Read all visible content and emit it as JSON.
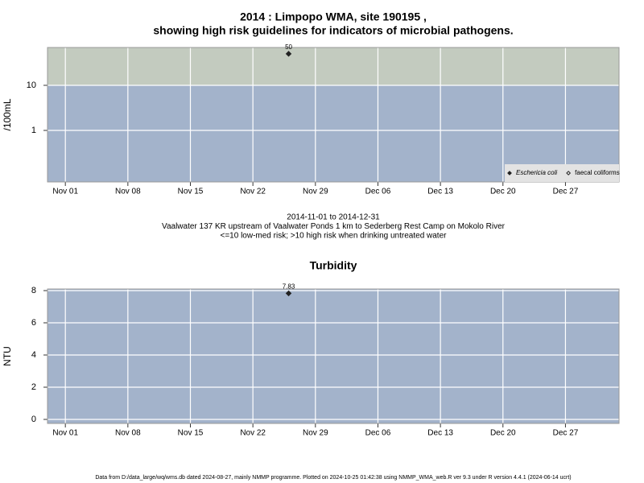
{
  "chart_data": [
    {
      "type": "scatter",
      "title": [
        "2014 : Limpopo WMA, site 190195 ,",
        "showing high risk guidelines for indicators of microbial pathogens."
      ],
      "subtitle": [
        "2014-11-01 to 2014-12-31",
        "Vaalwater 137 KR upstream of Vaalwater Ponds 1 km to Sederberg Rest Camp on Mokolo River",
        "<=10 low-med risk; >10 high risk when drinking untreated water"
      ],
      "ylabel": "/100mL",
      "log_y": true,
      "ylim": [
        0.072,
        69
      ],
      "yticks": [
        1,
        10
      ],
      "xlim": [
        "2014-10-30",
        "2015-01-02"
      ],
      "xticks": [
        {
          "value": "2014-11-01",
          "label": "Nov 01"
        },
        {
          "value": "2014-11-08",
          "label": "Nov 08"
        },
        {
          "value": "2014-11-15",
          "label": "Nov 15"
        },
        {
          "value": "2014-11-22",
          "label": "Nov 22"
        },
        {
          "value": "2014-11-29",
          "label": "Nov 29"
        },
        {
          "value": "2014-12-06",
          "label": "Dec 06"
        },
        {
          "value": "2014-12-13",
          "label": "Dec 13"
        },
        {
          "value": "2014-12-20",
          "label": "Dec 20"
        },
        {
          "value": "2014-12-27",
          "label": "Dec 27"
        }
      ],
      "grid": true,
      "guideline": 10,
      "band_colors": [
        "#a3b3cb",
        "#c3cbbf"
      ],
      "legend": "bottom-right",
      "series": [
        {
          "name": "Eschericia coli",
          "color": "#222222",
          "filled": true,
          "x": [
            "2014-11-26"
          ],
          "values": [
            50
          ]
        },
        {
          "name": "faecal coliforms",
          "color": "#222222",
          "filled": false,
          "x": [],
          "values": []
        }
      ]
    },
    {
      "type": "scatter",
      "title": [
        "Turbidity"
      ],
      "ylabel": "NTU",
      "log_y": false,
      "ylim": [
        -0.25,
        8.1
      ],
      "yticks": [
        0,
        2,
        4,
        6,
        8
      ],
      "xlim": [
        "2014-10-30",
        "2015-01-02"
      ],
      "xticks": [
        {
          "value": "2014-11-01",
          "label": "Nov 01"
        },
        {
          "value": "2014-11-08",
          "label": "Nov 08"
        },
        {
          "value": "2014-11-15",
          "label": "Nov 15"
        },
        {
          "value": "2014-11-22",
          "label": "Nov 22"
        },
        {
          "value": "2014-11-29",
          "label": "Nov 29"
        },
        {
          "value": "2014-12-06",
          "label": "Dec 06"
        },
        {
          "value": "2014-12-13",
          "label": "Dec 13"
        },
        {
          "value": "2014-12-20",
          "label": "Dec 20"
        },
        {
          "value": "2014-12-27",
          "label": "Dec 27"
        }
      ],
      "grid": true,
      "band_colors": [
        "#a3b3cb"
      ],
      "series": [
        {
          "name": "Turbidity",
          "color": "#222222",
          "filled": true,
          "x": [
            "2014-11-26"
          ],
          "values": [
            7.83
          ]
        }
      ]
    }
  ],
  "footer": "Data from D:/data_large/wq/wms.db dated 2024-08-27, mainly NMMP programme. Plotted on 2024-10-25 01:42:38 using NMMP_WMA_web.R ver 9.3 under R version 4.4.1 (2024-06-14 ucrt)"
}
